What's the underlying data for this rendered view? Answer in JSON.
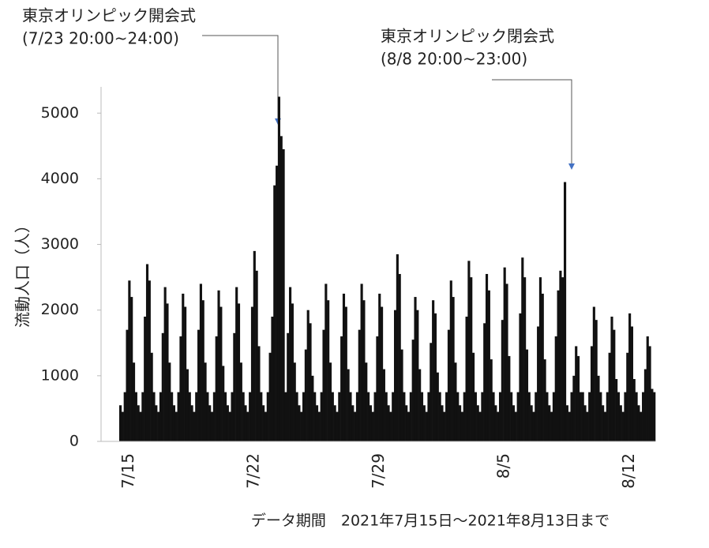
{
  "chart_data": {
    "type": "bar",
    "y_label": "流動人口（人）",
    "x_label": "データ期間　2021年7月15日～2021年8月13日まで",
    "annotations": [
      {
        "lines": [
          "東京オリンピック開会式",
          "(7/23 20:00~24:00)"
        ]
      },
      {
        "lines": [
          "東京オリンピック閉会式",
          "(8/8 20:00~23:00)"
        ]
      }
    ],
    "color": "#111111",
    "ylim": [
      0,
      5400
    ],
    "yticks": [
      0,
      1000,
      2000,
      3000,
      4000,
      5000
    ],
    "grid": false,
    "categories": [
      null,
      null,
      null,
      null,
      "7/15",
      null,
      null,
      null,
      null,
      null,
      null,
      null,
      null,
      null,
      null,
      null,
      null,
      null,
      null,
      null,
      null,
      null,
      null,
      null,
      null,
      null,
      null,
      null,
      null,
      null,
      null,
      null,
      null,
      null,
      null,
      null,
      null,
      null,
      null,
      null,
      null,
      null,
      null,
      null,
      null,
      null,
      null,
      null,
      null,
      null,
      null,
      null,
      null,
      null,
      null,
      null,
      null,
      null,
      null,
      null,
      "7/22",
      null,
      null,
      null,
      null,
      null,
      null,
      null,
      null,
      null,
      null,
      null,
      null,
      null,
      null,
      null,
      null,
      null,
      null,
      null,
      null,
      null,
      null,
      null,
      null,
      null,
      null,
      null,
      null,
      null,
      null,
      null,
      null,
      null,
      null,
      null,
      null,
      null,
      null,
      null,
      null,
      null,
      null,
      null,
      null,
      null,
      null,
      null,
      null,
      null,
      null,
      null,
      null,
      null,
      null,
      null,
      "7/29",
      null,
      null,
      null,
      null,
      null,
      null,
      null,
      null,
      null,
      null,
      null,
      null,
      null,
      null,
      null,
      null,
      null,
      null,
      null,
      null,
      null,
      null,
      null,
      null,
      null,
      null,
      null,
      null,
      null,
      null,
      null,
      null,
      null,
      null,
      null,
      null,
      null,
      null,
      null,
      null,
      null,
      null,
      null,
      null,
      null,
      null,
      null,
      null,
      null,
      null,
      null,
      null,
      null,
      null,
      null,
      "8/5",
      null,
      null,
      null,
      null,
      null,
      null,
      null,
      null,
      null,
      null,
      null,
      null,
      null,
      null,
      null,
      null,
      null,
      null,
      null,
      null,
      null,
      null,
      null,
      null,
      null,
      null,
      null,
      null,
      null,
      null,
      null,
      null,
      null,
      null,
      null,
      null,
      null,
      null,
      null,
      null,
      null,
      null,
      null,
      null,
      null,
      null,
      null,
      null,
      null,
      null,
      null,
      null,
      null,
      null,
      null,
      "8/12",
      null,
      null,
      null,
      null,
      null,
      null,
      null,
      null,
      null,
      null,
      null
    ],
    "values": [
      550,
      450,
      750,
      1700,
      2450,
      2200,
      1200,
      750,
      550,
      450,
      750,
      1900,
      2700,
      2450,
      1350,
      750,
      550,
      450,
      750,
      1650,
      2350,
      2100,
      1200,
      750,
      550,
      450,
      750,
      1600,
      2250,
      2050,
      1100,
      750,
      550,
      450,
      750,
      1700,
      2400,
      2150,
      1200,
      750,
      550,
      450,
      750,
      1600,
      2300,
      2050,
      1150,
      750,
      550,
      450,
      750,
      1650,
      2350,
      2100,
      1200,
      750,
      550,
      450,
      750,
      2050,
      2900,
      2600,
      1450,
      750,
      550,
      450,
      750,
      1350,
      1900,
      3900,
      4200,
      5250,
      4650,
      4450,
      750,
      1650,
      2350,
      2100,
      1200,
      750,
      550,
      450,
      750,
      1400,
      2000,
      1800,
      1000,
      750,
      550,
      450,
      750,
      1700,
      2400,
      2150,
      1200,
      750,
      550,
      450,
      750,
      1600,
      2250,
      2050,
      1100,
      750,
      550,
      450,
      750,
      1700,
      2400,
      2150,
      1200,
      750,
      550,
      450,
      750,
      1600,
      2250,
      2050,
      1100,
      750,
      550,
      450,
      750,
      2000,
      2850,
      2550,
      1400,
      750,
      550,
      450,
      750,
      1550,
      2200,
      2000,
      1100,
      750,
      550,
      450,
      750,
      1500,
      2150,
      1950,
      1050,
      750,
      550,
      450,
      750,
      1700,
      2450,
      2200,
      1200,
      750,
      550,
      450,
      750,
      1900,
      2750,
      2500,
      1350,
      750,
      550,
      450,
      750,
      1800,
      2550,
      2300,
      1250,
      750,
      550,
      450,
      750,
      1850,
      2650,
      2400,
      1300,
      750,
      550,
      450,
      750,
      1950,
      2800,
      2500,
      1400,
      750,
      550,
      450,
      750,
      1750,
      2500,
      2250,
      1250,
      750,
      550,
      450,
      750,
      1600,
      2300,
      2600,
      2500,
      3950,
      550,
      450,
      750,
      1000,
      1450,
      1300,
      750,
      750,
      550,
      450,
      750,
      1450,
      2050,
      1850,
      1000,
      750,
      550,
      450,
      750,
      1350,
      1900,
      1700,
      950,
      750,
      550,
      450,
      750,
      1350,
      1950,
      1750,
      950,
      750,
      550,
      450,
      750,
      1100,
      1600,
      1450,
      800,
      750
    ]
  }
}
